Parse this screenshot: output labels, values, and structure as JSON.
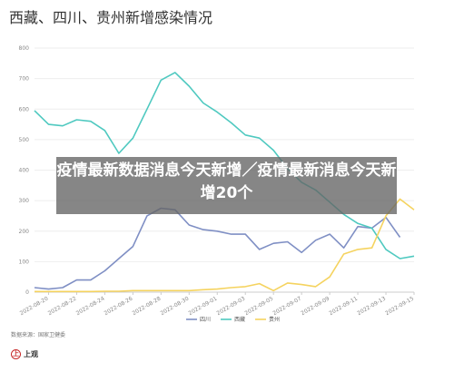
{
  "title": "西藏、四川、贵州新增感染情况",
  "banner": "疫情最新数据消息今天新增／疫情最新消息今天新增20个",
  "source": "数据来源：国家卫健委",
  "logo_text": "上观",
  "chart_data": {
    "type": "line",
    "title": "西藏、四川、贵州新增感染情况",
    "xlabel": "",
    "ylabel": "",
    "ylim": [
      0,
      800
    ],
    "yticks": [
      0,
      100,
      200,
      300,
      400,
      500,
      600,
      700,
      800
    ],
    "grid": true,
    "legend_position": "bottom",
    "x": [
      "2022-08-19",
      "2022-08-20",
      "2022-08-21",
      "2022-08-22",
      "2022-08-23",
      "2022-08-24",
      "2022-08-25",
      "2022-08-26",
      "2022-08-27",
      "2022-08-28",
      "2022-08-29",
      "2022-08-30",
      "2022-08-31",
      "2022-09-01",
      "2022-09-02",
      "2022-09-03",
      "2022-09-04",
      "2022-09-05",
      "2022-09-06",
      "2022-09-07",
      "2022-09-08",
      "2022-09-09",
      "2022-09-10",
      "2022-09-11",
      "2022-09-12",
      "2022-09-13",
      "2022-09-14",
      "2022-09-15"
    ],
    "xtick_labels": [
      "2022-08-20",
      "2022-08-22",
      "2022-08-24",
      "2022-08-26",
      "2022-08-28",
      "2022-08-30",
      "2022-09-01",
      "2022-09-03",
      "2022-09-05",
      "2022-09-07",
      "2022-09-09",
      "2022-09-11",
      "2022-09-13",
      "2022-09-15"
    ],
    "series": [
      {
        "name": "四川",
        "color": "#7f8fc4",
        "values": [
          15,
          10,
          15,
          40,
          40,
          70,
          110,
          150,
          250,
          275,
          270,
          220,
          205,
          200,
          190,
          190,
          140,
          160,
          165,
          130,
          170,
          190,
          145,
          215,
          210,
          245,
          180,
          null
        ]
      },
      {
        "name": "西藏",
        "color": "#4fc9c0",
        "values": [
          595,
          550,
          545,
          565,
          560,
          530,
          455,
          505,
          600,
          695,
          720,
          675,
          620,
          590,
          555,
          515,
          505,
          465,
          405,
          360,
          335,
          295,
          255,
          225,
          210,
          140,
          110,
          118
        ]
      },
      {
        "name": "贵州",
        "color": "#f5d35f",
        "values": [
          2,
          2,
          2,
          2,
          2,
          3,
          3,
          5,
          5,
          5,
          5,
          5,
          8,
          10,
          15,
          18,
          28,
          5,
          30,
          25,
          18,
          50,
          125,
          140,
          145,
          250,
          305,
          270
        ]
      }
    ]
  }
}
